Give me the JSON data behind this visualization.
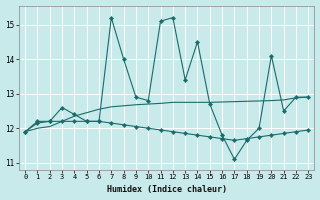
{
  "xlabel": "Humidex (Indice chaleur)",
  "bg_color": "#c8eaea",
  "line_color": "#1a6b6b",
  "x_values": [
    0,
    1,
    2,
    3,
    4,
    5,
    6,
    7,
    8,
    9,
    10,
    11,
    12,
    13,
    14,
    15,
    16,
    17,
    18,
    19,
    20,
    21,
    22,
    23
  ],
  "series1": [
    11.9,
    12.2,
    12.2,
    12.6,
    12.4,
    12.2,
    12.2,
    15.2,
    14.0,
    12.9,
    12.8,
    15.1,
    15.2,
    13.4,
    14.5,
    12.7,
    11.8,
    11.1,
    11.65,
    12.0,
    14.1,
    12.5,
    12.9,
    12.9
  ],
  "series2": [
    11.9,
    12.15,
    12.2,
    12.2,
    12.2,
    12.2,
    12.2,
    12.15,
    12.1,
    12.05,
    12.0,
    11.95,
    11.9,
    11.85,
    11.8,
    11.75,
    11.7,
    11.65,
    11.7,
    11.75,
    11.8,
    11.85,
    11.9,
    11.95
  ],
  "series3": [
    11.9,
    12.0,
    12.05,
    12.2,
    12.35,
    12.45,
    12.55,
    12.62,
    12.65,
    12.68,
    12.7,
    12.72,
    12.75,
    12.75,
    12.75,
    12.75,
    12.76,
    12.77,
    12.78,
    12.79,
    12.8,
    12.82,
    12.88,
    12.9
  ],
  "ylim": [
    10.8,
    15.55
  ],
  "yticks": [
    11,
    12,
    13,
    14,
    15
  ],
  "xlim": [
    -0.5,
    23.5
  ],
  "xticks": [
    0,
    1,
    2,
    3,
    4,
    5,
    6,
    7,
    8,
    9,
    10,
    11,
    12,
    13,
    14,
    15,
    16,
    17,
    18,
    19,
    20,
    21,
    22,
    23
  ]
}
